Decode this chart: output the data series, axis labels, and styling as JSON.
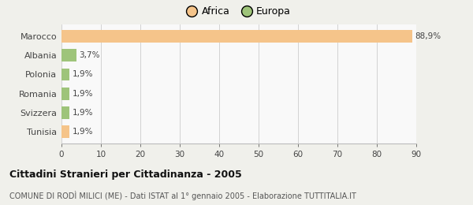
{
  "categories": [
    "Marocco",
    "Albania",
    "Polonia",
    "Romania",
    "Svizzera",
    "Tunisia"
  ],
  "values": [
    88.9,
    3.7,
    1.9,
    1.9,
    1.9,
    1.9
  ],
  "labels": [
    "88,9%",
    "3,7%",
    "1,9%",
    "1,9%",
    "1,9%",
    "1,9%"
  ],
  "colors": [
    "#f5c48a",
    "#9ec47a",
    "#9ec47a",
    "#9ec47a",
    "#9ec47a",
    "#f5c48a"
  ],
  "legend_items": [
    {
      "label": "Africa",
      "color": "#f5c48a"
    },
    {
      "label": "Europa",
      "color": "#9ec47a"
    }
  ],
  "xlim": [
    0,
    90
  ],
  "xticks": [
    0,
    10,
    20,
    30,
    40,
    50,
    60,
    70,
    80,
    90
  ],
  "title": "Cittadini Stranieri per Cittadinanza - 2005",
  "subtitle": "COMUNE DI RODÌ MILICI (ME) - Dati ISTAT al 1° gennaio 2005 - Elaborazione TUTTITALIA.IT",
  "background_color": "#f0f0eb",
  "bar_background": "#f9f9f9"
}
